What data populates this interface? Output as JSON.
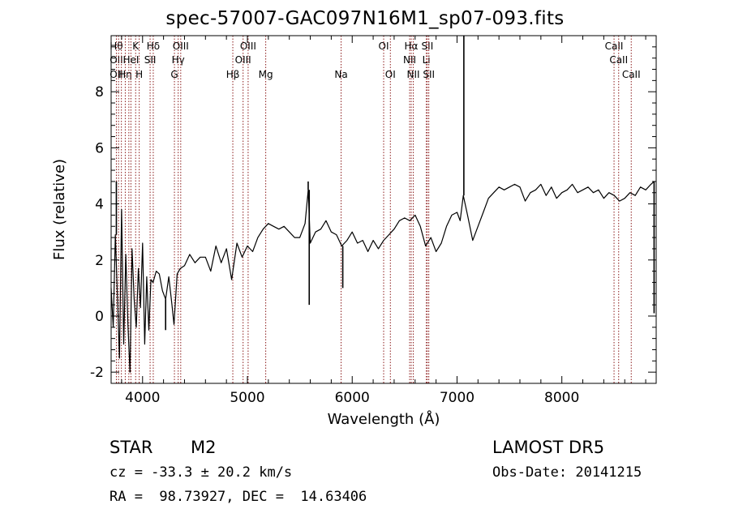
{
  "title": "spec-57007-GAC097N16M1_sp07-093.fits",
  "footer": {
    "class_label": "STAR",
    "subclass_label": "M2",
    "survey_label": "LAMOST DR5",
    "cz_label": "cz = -33.3 ± 20.2 km/s",
    "obs_date_label": "Obs-Date: 20141215",
    "radec_label": "RA =  98.73927, DEC =  14.63406"
  },
  "chart_data": {
    "type": "line",
    "title": "spec-57007-GAC097N16M1_sp07-093.fits",
    "xlabel": "Wavelength (Å)",
    "ylabel": "Flux (relative)",
    "xlim": [
      3700,
      8900
    ],
    "ylim": [
      -2.4,
      10.0
    ],
    "xticks": [
      4000,
      5000,
      6000,
      7000,
      8000
    ],
    "xtick_labels": [
      "4000",
      "5000",
      "6000",
      "7000",
      "8000"
    ],
    "yticks": [
      -2,
      0,
      2,
      4,
      6,
      8
    ],
    "ytick_labels": [
      "-2",
      "0",
      "2",
      "4",
      "6",
      "8"
    ],
    "grid": false,
    "line_color": "#000000",
    "marker_color": "#8b1a1a",
    "series": [
      {
        "x": [
          3700,
          3720,
          3740,
          3760,
          3780,
          3800,
          3820,
          3840,
          3860,
          3880,
          3900,
          3920,
          3940,
          3960,
          3980,
          4000,
          4020,
          4040,
          4060,
          4080,
          4100,
          4130,
          4160,
          4190,
          4220,
          4250,
          4280,
          4300,
          4330,
          4360,
          4400,
          4450,
          4500,
          4550,
          4600,
          4650,
          4700,
          4750,
          4800,
          4850,
          4900,
          4950,
          5000,
          5050,
          5100,
          5150,
          5200,
          5250,
          5300,
          5350,
          5400,
          5450,
          5500,
          5550,
          5580,
          5600,
          5650,
          5700,
          5750,
          5800,
          5850,
          5900,
          5950,
          6000,
          6050,
          6100,
          6150,
          6200,
          6250,
          6300,
          6350,
          6400,
          6450,
          6500,
          6550,
          6600,
          6650,
          6700,
          6750,
          6800,
          6850,
          6900,
          6950,
          7000,
          7030,
          7060,
          7100,
          7150,
          7200,
          7250,
          7300,
          7350,
          7400,
          7450,
          7500,
          7550,
          7600,
          7650,
          7700,
          7750,
          7800,
          7850,
          7900,
          7950,
          8000,
          8050,
          8100,
          8150,
          8200,
          8250,
          8300,
          8350,
          8400,
          8450,
          8500,
          8550,
          8600,
          8650,
          8700,
          8750,
          8800,
          8850,
          8880
        ],
        "y": [
          1.0,
          -0.4,
          2.9,
          0.7,
          -1.5,
          3.8,
          -1.0,
          2.2,
          -0.3,
          -2.0,
          2.4,
          0.6,
          -0.4,
          1.7,
          0.3,
          2.6,
          -1.0,
          1.4,
          -0.5,
          1.3,
          1.2,
          1.6,
          1.5,
          0.9,
          0.6,
          1.4,
          0.4,
          -0.3,
          1.5,
          1.7,
          1.8,
          2.2,
          1.9,
          2.1,
          2.1,
          1.6,
          2.5,
          1.9,
          2.4,
          1.3,
          2.6,
          2.1,
          2.5,
          2.3,
          2.8,
          3.1,
          3.3,
          3.2,
          3.1,
          3.2,
          3.0,
          2.8,
          2.8,
          3.3,
          4.5,
          2.6,
          3.0,
          3.1,
          3.4,
          3.0,
          2.9,
          2.5,
          2.7,
          3.0,
          2.6,
          2.7,
          2.3,
          2.7,
          2.4,
          2.7,
          2.9,
          3.1,
          3.4,
          3.5,
          3.4,
          3.6,
          3.2,
          2.5,
          2.8,
          2.3,
          2.6,
          3.2,
          3.6,
          3.7,
          3.4,
          4.3,
          3.6,
          2.7,
          3.2,
          3.7,
          4.2,
          4.4,
          4.6,
          4.5,
          4.6,
          4.7,
          4.6,
          4.1,
          4.4,
          4.5,
          4.7,
          4.3,
          4.6,
          4.2,
          4.4,
          4.5,
          4.7,
          4.4,
          4.5,
          4.6,
          4.4,
          4.5,
          4.2,
          4.4,
          4.3,
          4.1,
          4.2,
          4.4,
          4.3,
          4.6,
          4.5,
          4.7,
          4.8
        ]
      }
    ],
    "spikes": [
      {
        "x": 3750,
        "y": 4.8
      },
      {
        "x": 3880,
        "y": -1.9
      },
      {
        "x": 4220,
        "y": -0.5
      },
      {
        "x": 5580,
        "y": 4.8
      },
      {
        "x": 5590,
        "y": 0.4
      },
      {
        "x": 5910,
        "y": 1.0
      },
      {
        "x": 7065,
        "y": 10.0
      },
      {
        "x": 8880,
        "y": 0.1
      }
    ],
    "line_markers": [
      {
        "x": 3750,
        "labels": [
          "Hθ",
          "OII",
          "OII"
        ]
      },
      {
        "x": 3771,
        "labels": []
      },
      {
        "x": 3798,
        "labels": []
      },
      {
        "x": 3835,
        "labels": [
          "",
          "",
          "Hη"
        ]
      },
      {
        "x": 3869,
        "labels": []
      },
      {
        "x": 3889,
        "labels": [
          "",
          "HeI",
          ""
        ]
      },
      {
        "x": 3934,
        "labels": [
          "K",
          "",
          ""
        ]
      },
      {
        "x": 3968,
        "labels": [
          "",
          "",
          "H"
        ]
      },
      {
        "x": 4072,
        "labels": [
          "",
          "SII",
          ""
        ]
      },
      {
        "x": 4102,
        "labels": [
          "Hδ",
          "",
          ""
        ]
      },
      {
        "x": 4304,
        "labels": [
          "",
          "",
          "G"
        ]
      },
      {
        "x": 4340,
        "labels": [
          "",
          "Hγ",
          ""
        ]
      },
      {
        "x": 4364,
        "labels": [
          "OIII",
          "",
          ""
        ]
      },
      {
        "x": 4861,
        "labels": [
          "",
          "",
          "Hβ"
        ]
      },
      {
        "x": 4959,
        "labels": [
          "",
          "OIII",
          ""
        ]
      },
      {
        "x": 5007,
        "labels": [
          "OIII",
          "",
          ""
        ]
      },
      {
        "x": 5175,
        "labels": [
          "",
          "",
          "Mg"
        ]
      },
      {
        "x": 5894,
        "labels": [
          "",
          "",
          "Na"
        ]
      },
      {
        "x": 6300,
        "labels": [
          "OI",
          "",
          ""
        ]
      },
      {
        "x": 6364,
        "labels": [
          "",
          "",
          "OI"
        ]
      },
      {
        "x": 6548,
        "labels": [
          "",
          "NII",
          ""
        ]
      },
      {
        "x": 6563,
        "labels": [
          "Hα",
          "",
          ""
        ]
      },
      {
        "x": 6583,
        "labels": [
          "",
          "",
          "NII"
        ]
      },
      {
        "x": 6707,
        "labels": [
          "",
          "Li",
          ""
        ]
      },
      {
        "x": 6717,
        "labels": [
          "SII",
          "",
          ""
        ]
      },
      {
        "x": 6731,
        "labels": [
          "",
          "",
          "SII"
        ]
      },
      {
        "x": 8498,
        "labels": [
          "CaII",
          "",
          ""
        ]
      },
      {
        "x": 8542,
        "labels": [
          "",
          "CaII",
          ""
        ]
      },
      {
        "x": 8662,
        "labels": [
          "",
          "",
          "CaII"
        ]
      }
    ]
  }
}
